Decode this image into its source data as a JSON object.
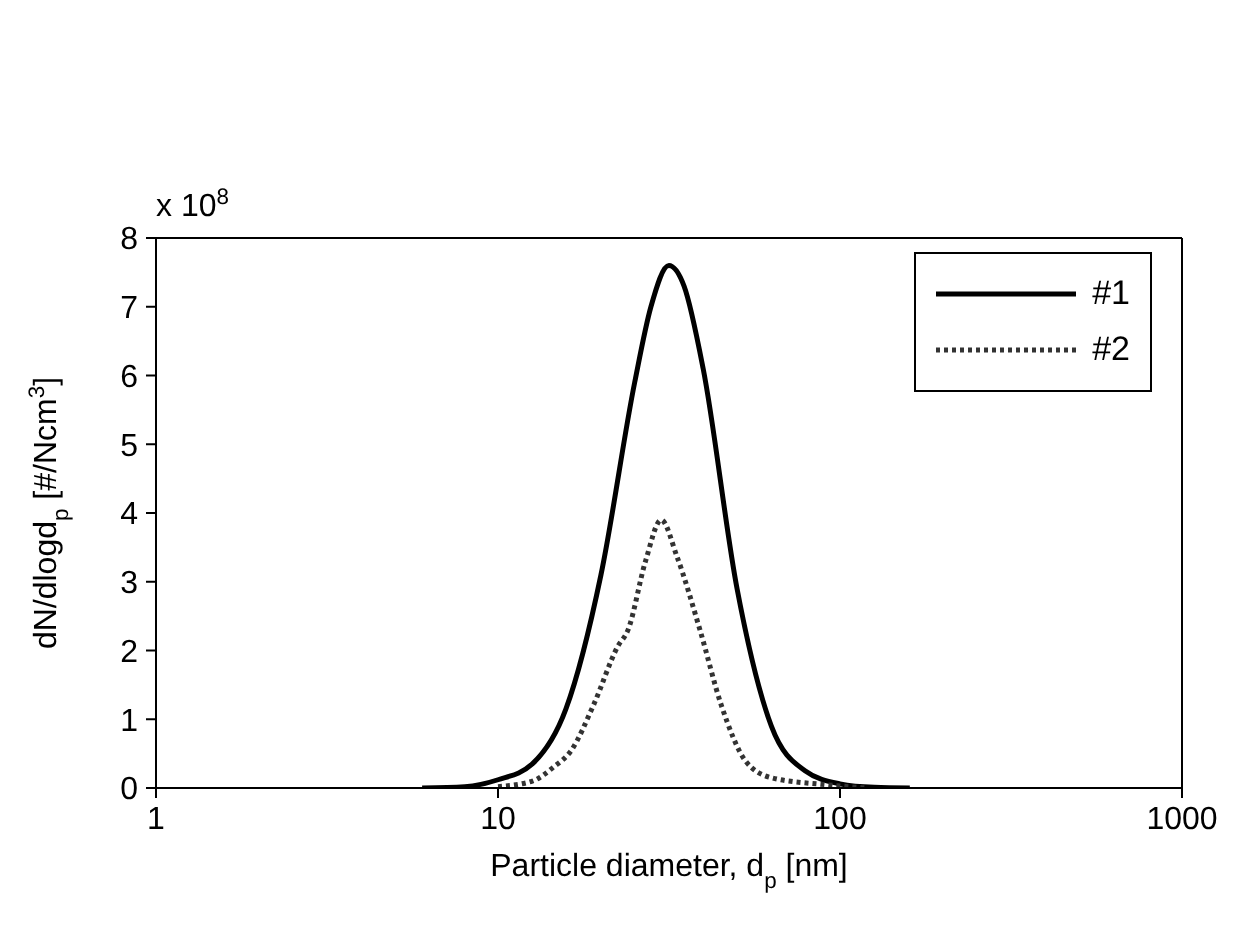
{
  "chart_data": {
    "type": "line",
    "xlabel": "Particle diameter, d$_{p}$ [nm]",
    "ylabel": "dN/dlogd$_{p}$ [#/Ncm$^{3}$]",
    "annotations": [
      "x 10$^{8}$"
    ],
    "log": "x",
    "xlim": [
      1,
      1000
    ],
    "xticks": [
      1,
      10,
      100,
      1000
    ],
    "ylim": [
      0,
      8
    ],
    "yticks": [
      0,
      1,
      2,
      3,
      4,
      5,
      6,
      7,
      8
    ],
    "grid": false,
    "legend": "top right",
    "marker": "none",
    "series": [
      {
        "name": "#1",
        "color": "#000000",
        "line_style": "solid",
        "x": [
          6,
          8,
          10,
          12.6,
          15.8,
          20,
          25.1,
          28,
          31.6,
          35,
          39.8,
          50,
          63,
          79,
          100,
          126,
          160
        ],
        "values": [
          0,
          0.02,
          0.12,
          0.35,
          1.15,
          3.1,
          5.9,
          7.0,
          7.6,
          7.3,
          6.1,
          2.9,
          0.9,
          0.25,
          0.06,
          0.01,
          0
        ]
      },
      {
        "name": "#2",
        "color": "#333333",
        "line_style": "dotted",
        "x": [
          10,
          12.6,
          14.5,
          16.4,
          19,
          22.4,
          24,
          27,
          30,
          33.4,
          39,
          45,
          53,
          63,
          90,
          120
        ],
        "values": [
          0.02,
          0.1,
          0.3,
          0.55,
          1.2,
          2.06,
          2.3,
          3.3,
          3.9,
          3.36,
          2.29,
          1.2,
          0.39,
          0.15,
          0.05,
          0
        ]
      }
    ]
  }
}
